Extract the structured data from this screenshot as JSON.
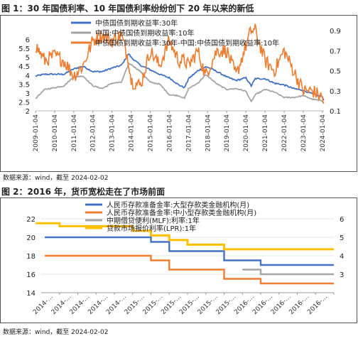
{
  "figures": [
    {
      "title": "图 1：30 年国债利率、10 年国债利率纷纷创下 20 年以来的新低",
      "source": "数据来源：wind，截至 2024-02-02"
    },
    {
      "title": "图 2：2016 年，货币宽松走在了市场前面",
      "source": "数据来源：wind，截至 2024-02-02"
    }
  ],
  "chart_data": [
    {
      "type": "line",
      "title": "图 1：30 年国债利率、10 年国债利率纷纷创下 20 年以来的新低",
      "x_type": "date",
      "x_range": [
        "2009-01-04",
        "2024-02-02"
      ],
      "x_tick_labels": [
        "2009-01-04",
        "2010-01-04",
        "2011-01-04",
        "2012-01-04",
        "2013-01-04",
        "2014-01-04",
        "2015-01-04",
        "2016-01-04",
        "2017-01-04",
        "2018-01-04",
        "2019-01-04",
        "2020-01-04",
        "2021-01-04",
        "2022-01-04",
        "2023-01-04",
        "2024-01-04"
      ],
      "ylim_left": [
        2,
        6.5
      ],
      "yticks_left": [
        2,
        2.5,
        3,
        3.5,
        4,
        4.5,
        5,
        5.5,
        6
      ],
      "ylim_right": [
        0.1,
        0.9
      ],
      "yticks_right": [
        0.1,
        0.3,
        0.5,
        0.7,
        0.9
      ],
      "legend_position": "top-center",
      "series": [
        {
          "name": "中债国债到期收益率:30年",
          "axis": "left",
          "color": "#4472c4",
          "x": [
            "2009-01-04",
            "2009-07-01",
            "2010-01-04",
            "2010-07-01",
            "2011-01-04",
            "2011-07-01",
            "2012-01-04",
            "2012-07-01",
            "2013-01-04",
            "2013-07-01",
            "2013-11-20",
            "2014-01-04",
            "2014-07-01",
            "2015-01-04",
            "2015-07-01",
            "2016-01-04",
            "2016-07-01",
            "2016-10-20",
            "2017-01-04",
            "2017-07-01",
            "2017-11-20",
            "2018-01-04",
            "2018-07-01",
            "2019-01-04",
            "2019-07-01",
            "2020-01-04",
            "2020-04-15",
            "2020-07-01",
            "2021-01-04",
            "2021-07-01",
            "2022-01-04",
            "2022-07-01",
            "2023-01-04",
            "2023-07-01",
            "2024-01-04",
            "2024-02-02"
          ],
          "y": [
            3.95,
            4.05,
            4.05,
            4.05,
            4.35,
            4.5,
            4.2,
            4.2,
            4.4,
            4.55,
            5.2,
            5.0,
            4.55,
            4.3,
            4.05,
            3.85,
            3.45,
            3.3,
            3.8,
            4.25,
            4.45,
            4.45,
            4.2,
            3.9,
            3.7,
            3.85,
            3.4,
            3.8,
            3.8,
            3.55,
            3.45,
            3.25,
            3.15,
            2.95,
            2.78,
            2.6
          ]
        },
        {
          "name": "中国:中债国债到期收益率:10年",
          "axis": "left",
          "color": "#a5a5a5",
          "x": [
            "2009-01-04",
            "2009-07-01",
            "2010-01-04",
            "2010-07-01",
            "2011-01-04",
            "2011-07-01",
            "2012-01-04",
            "2012-07-01",
            "2013-01-04",
            "2013-07-01",
            "2013-11-20",
            "2014-01-04",
            "2014-07-01",
            "2015-01-04",
            "2015-07-01",
            "2016-01-04",
            "2016-07-01",
            "2016-10-20",
            "2017-01-04",
            "2017-07-01",
            "2017-11-20",
            "2018-01-04",
            "2018-07-01",
            "2019-01-04",
            "2019-07-01",
            "2020-01-04",
            "2020-04-15",
            "2020-07-01",
            "2021-01-04",
            "2021-07-01",
            "2022-01-04",
            "2022-07-01",
            "2023-01-04",
            "2023-07-01",
            "2024-01-04",
            "2024-02-02"
          ],
          "y": [
            2.7,
            3.2,
            3.3,
            3.4,
            3.9,
            3.95,
            3.4,
            3.25,
            3.55,
            3.6,
            4.65,
            4.6,
            4.2,
            3.6,
            3.5,
            2.9,
            2.85,
            2.7,
            3.25,
            3.55,
            4.0,
            3.95,
            3.5,
            3.2,
            3.25,
            3.1,
            2.5,
            2.9,
            3.2,
            3.05,
            2.75,
            2.75,
            2.85,
            2.65,
            2.55,
            2.42
          ]
        },
        {
          "name": "中债国债到期收益率:30年-中国:中债国债到期收益率:10年",
          "axis": "right",
          "color": "#ed7d31",
          "x": [
            "2009-01-04",
            "2009-07-01",
            "2010-01-04",
            "2010-07-01",
            "2011-01-04",
            "2011-07-01",
            "2012-01-04",
            "2012-07-01",
            "2013-01-04",
            "2013-07-01",
            "2013-11-20",
            "2014-01-04",
            "2014-07-01",
            "2015-01-04",
            "2015-07-01",
            "2016-01-04",
            "2016-07-01",
            "2016-10-20",
            "2017-01-04",
            "2017-07-01",
            "2017-11-20",
            "2018-01-04",
            "2018-07-01",
            "2019-01-04",
            "2019-07-01",
            "2020-01-04",
            "2020-04-15",
            "2020-07-01",
            "2021-01-04",
            "2021-07-01",
            "2022-01-04",
            "2022-07-01",
            "2023-01-04",
            "2023-07-01",
            "2024-01-04",
            "2024-02-02"
          ],
          "y": [
            0.75,
            0.6,
            0.65,
            0.6,
            0.45,
            0.55,
            0.8,
            0.85,
            0.8,
            0.85,
            0.6,
            0.4,
            0.35,
            0.7,
            0.55,
            0.8,
            0.6,
            0.6,
            0.55,
            0.7,
            0.45,
            0.5,
            0.7,
            0.7,
            0.45,
            0.75,
            0.9,
            0.9,
            0.6,
            0.5,
            0.7,
            0.5,
            0.3,
            0.3,
            0.23,
            0.18
          ]
        }
      ]
    },
    {
      "type": "line",
      "title": "图 2：2016 年，货币宽松走在了市场前面",
      "x_type": "category",
      "categories": [
        "2014-…",
        "2014-…",
        "2014-…",
        "2014-…",
        "2014-…",
        "2015-…",
        "2015-…",
        "2015-…",
        "2015-…",
        "2015-…",
        "2015-…",
        "2016-…",
        "2016-…",
        "2016-…",
        "2016-…",
        "2016-…"
      ],
      "ylim_left": [
        14,
        22
      ],
      "yticks_left": [
        14,
        16,
        18,
        20,
        22
      ],
      "ylim_right": [
        2,
        6
      ],
      "yticks_right": [
        3,
        4,
        5,
        6
      ],
      "legend_position": "top-center",
      "series": [
        {
          "name": "人民币存款准备金率:大型存款类金融机构(月)",
          "axis": "left",
          "color": "#4472c4",
          "values": [
            20,
            20,
            20,
            20,
            20,
            20,
            19.5,
            18.5,
            18.5,
            18.5,
            17.5,
            17.5,
            17,
            17,
            17,
            17
          ]
        },
        {
          "name": "人民币存款准备金率:中小型存款类金融机构(月)",
          "axis": "left",
          "color": "#ed7d31",
          "values": [
            18,
            18,
            18,
            18,
            18,
            18,
            17.5,
            16.5,
            16.5,
            16.5,
            15.5,
            15.5,
            15,
            15,
            15,
            15
          ]
        },
        {
          "name": "中期借贷便利(MLF):利率:1年",
          "axis": "right",
          "color": "#a5a5a5",
          "values": [
            null,
            null,
            null,
            null,
            null,
            null,
            null,
            null,
            null,
            null,
            null,
            3.25,
            3.0,
            3.0,
            3.0,
            3.0
          ]
        },
        {
          "name": "贷款市场报价利率(LPR):1年",
          "axis": "right",
          "color": "#ffc000",
          "values": [
            5.76,
            5.6,
            5.6,
            5.6,
            5.6,
            5.35,
            5.1,
            4.85,
            4.6,
            4.6,
            4.35,
            4.35,
            4.35,
            4.35,
            4.35,
            4.35
          ]
        }
      ]
    }
  ]
}
